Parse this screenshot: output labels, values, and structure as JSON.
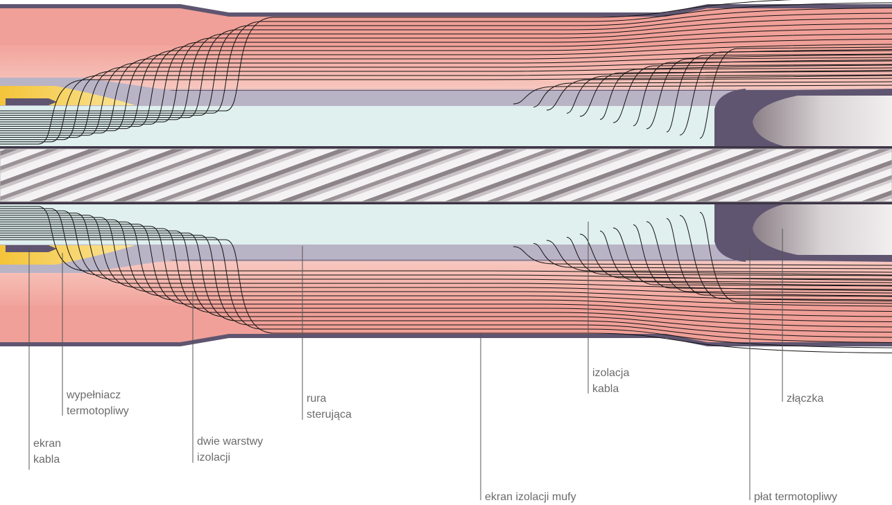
{
  "labels": [
    {
      "lines": [
        "ekran",
        "kabla"
      ]
    },
    {
      "lines": [
        "wypełniacz",
        "termotopliwy"
      ]
    },
    {
      "lines": [
        "dwie warstwy",
        "izolacji"
      ]
    },
    {
      "lines": [
        "rura",
        "sterująca"
      ]
    },
    {
      "lines": [
        "ekran izolacji mufy"
      ]
    },
    {
      "lines": [
        "izolacja",
        "kabla"
      ]
    },
    {
      "lines": [
        "złączka"
      ]
    },
    {
      "lines": [
        "płat termotopliwy"
      ]
    }
  ]
}
